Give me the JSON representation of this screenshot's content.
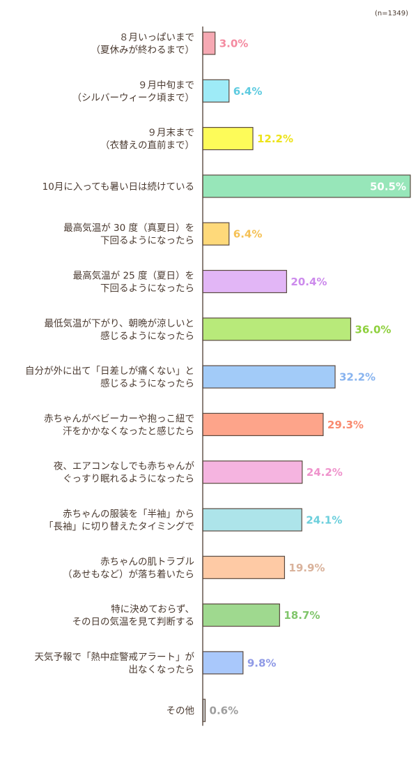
{
  "note": "(n=1349)",
  "chart_data": {
    "type": "bar",
    "orientation": "horizontal",
    "unit": "%",
    "xlim": [
      0,
      50.5
    ],
    "categories": [
      [
        "８月いっぱいまで",
        "（夏休みが終わるまで）"
      ],
      [
        "９月中旬まで",
        "（シルバーウィーク頃まで）"
      ],
      [
        "９月末まで",
        "（衣替えの直前まで）"
      ],
      [
        "10月に入っても暑い日は続けている"
      ],
      [
        "最高気温が 30 度（真夏日）を",
        "下回るようになったら"
      ],
      [
        "最高気温が 25 度（夏日）を",
        "下回るようになったら"
      ],
      [
        "最低気温が下がり、朝晩が涼しいと",
        "感じるようになったら"
      ],
      [
        "自分が外に出て「日差しが痛くない」と",
        "感じるようになったら"
      ],
      [
        "赤ちゃんがベビーカーや抱っこ紐で",
        "汗をかかなくなったと感じたら"
      ],
      [
        "夜、エアコンなしでも赤ちゃんが",
        "ぐっすり眠れるようになったら"
      ],
      [
        "赤ちゃんの服装を「半袖」から",
        "「長袖」に切り替えたタイミングで"
      ],
      [
        "赤ちゃんの肌トラブル",
        "（あせもなど）が落ち着いたら"
      ],
      [
        "特に決めておらず、",
        "その日の気温を見て判断する"
      ],
      [
        "天気予報で「熱中症警戒アラート」が",
        "出なくなったら"
      ],
      [
        "その他"
      ]
    ],
    "values": [
      3.0,
      6.4,
      12.2,
      50.5,
      6.4,
      20.4,
      36.0,
      32.2,
      29.3,
      24.2,
      24.1,
      19.9,
      18.7,
      9.8,
      0.6
    ],
    "value_labels": [
      "3.0%",
      "6.4%",
      "12.2%",
      "50.5%",
      "6.4%",
      "20.4%",
      "36.0%",
      "32.2%",
      "29.3%",
      "24.2%",
      "24.1%",
      "19.9%",
      "18.7%",
      "9.8%",
      "0.6%"
    ],
    "bar_colors": [
      "#f6a9b3",
      "#9eebf7",
      "#fdfb59",
      "#97e6b9",
      "#fed97a",
      "#e2b6f6",
      "#b8ea7a",
      "#a2cbf8",
      "#fda48a",
      "#f5b4e0",
      "#ade4ea",
      "#fecaa5",
      "#9fd98f",
      "#a9c8fb",
      "#c9c9c9"
    ],
    "label_colors": [
      "#f48aa0",
      "#5ecbe0",
      "#ede31a",
      "#ffffff",
      "#f5c155",
      "#cc8aec",
      "#8fd03e",
      "#87b3ef",
      "#f98a6f",
      "#ef93cc",
      "#6ccfdc",
      "#d9b29b",
      "#80c56b",
      "#8f9ae6",
      "#9e9e9e"
    ]
  }
}
